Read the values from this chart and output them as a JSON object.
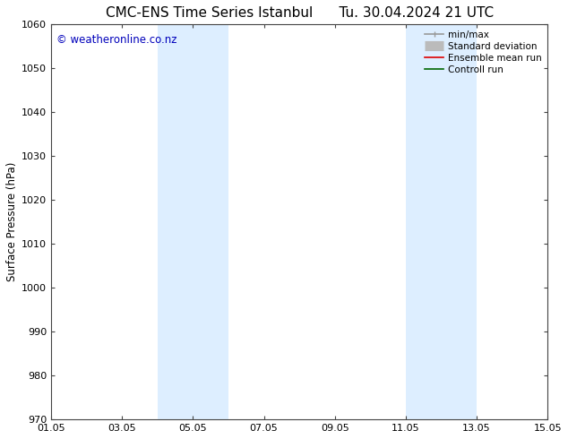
{
  "title_left": "CMC-ENS Time Series Istanbul",
  "title_right": "Tu. 30.04.2024 21 UTC",
  "ylabel": "Surface Pressure (hPa)",
  "xlabel_ticks": [
    "01.05",
    "03.05",
    "05.05",
    "07.05",
    "09.05",
    "11.05",
    "13.05",
    "15.05"
  ],
  "x_tick_positions": [
    0,
    2,
    4,
    6,
    8,
    10,
    12,
    14
  ],
  "xlim": [
    0,
    14
  ],
  "ylim": [
    970,
    1060
  ],
  "yticks": [
    970,
    980,
    990,
    1000,
    1010,
    1020,
    1030,
    1040,
    1050,
    1060
  ],
  "bg_color": "#ffffff",
  "plot_bg_color": "#ffffff",
  "shaded_bands": [
    {
      "x_start": 3.0,
      "x_end": 5.0,
      "color": "#ddeeff"
    },
    {
      "x_start": 10.0,
      "x_end": 12.0,
      "color": "#ddeeff"
    }
  ],
  "watermark_text": "© weatheronline.co.nz",
  "watermark_color": "#0000bb",
  "watermark_fontsize": 8.5,
  "legend_entries": [
    {
      "label": "min/max",
      "color": "#999999",
      "linewidth": 1.2,
      "linestyle": "-",
      "type": "minmax"
    },
    {
      "label": "Standard deviation",
      "color": "#bbbbbb",
      "linewidth": 8,
      "linestyle": "-",
      "type": "std"
    },
    {
      "label": "Ensemble mean run",
      "color": "#dd0000",
      "linewidth": 1.2,
      "linestyle": "-",
      "type": "line"
    },
    {
      "label": "Controll run",
      "color": "#006600",
      "linewidth": 1.2,
      "linestyle": "-",
      "type": "line"
    }
  ],
  "title_fontsize": 11,
  "axis_label_fontsize": 8.5,
  "tick_fontsize": 8,
  "legend_fontsize": 7.5,
  "title_gap": "     "
}
